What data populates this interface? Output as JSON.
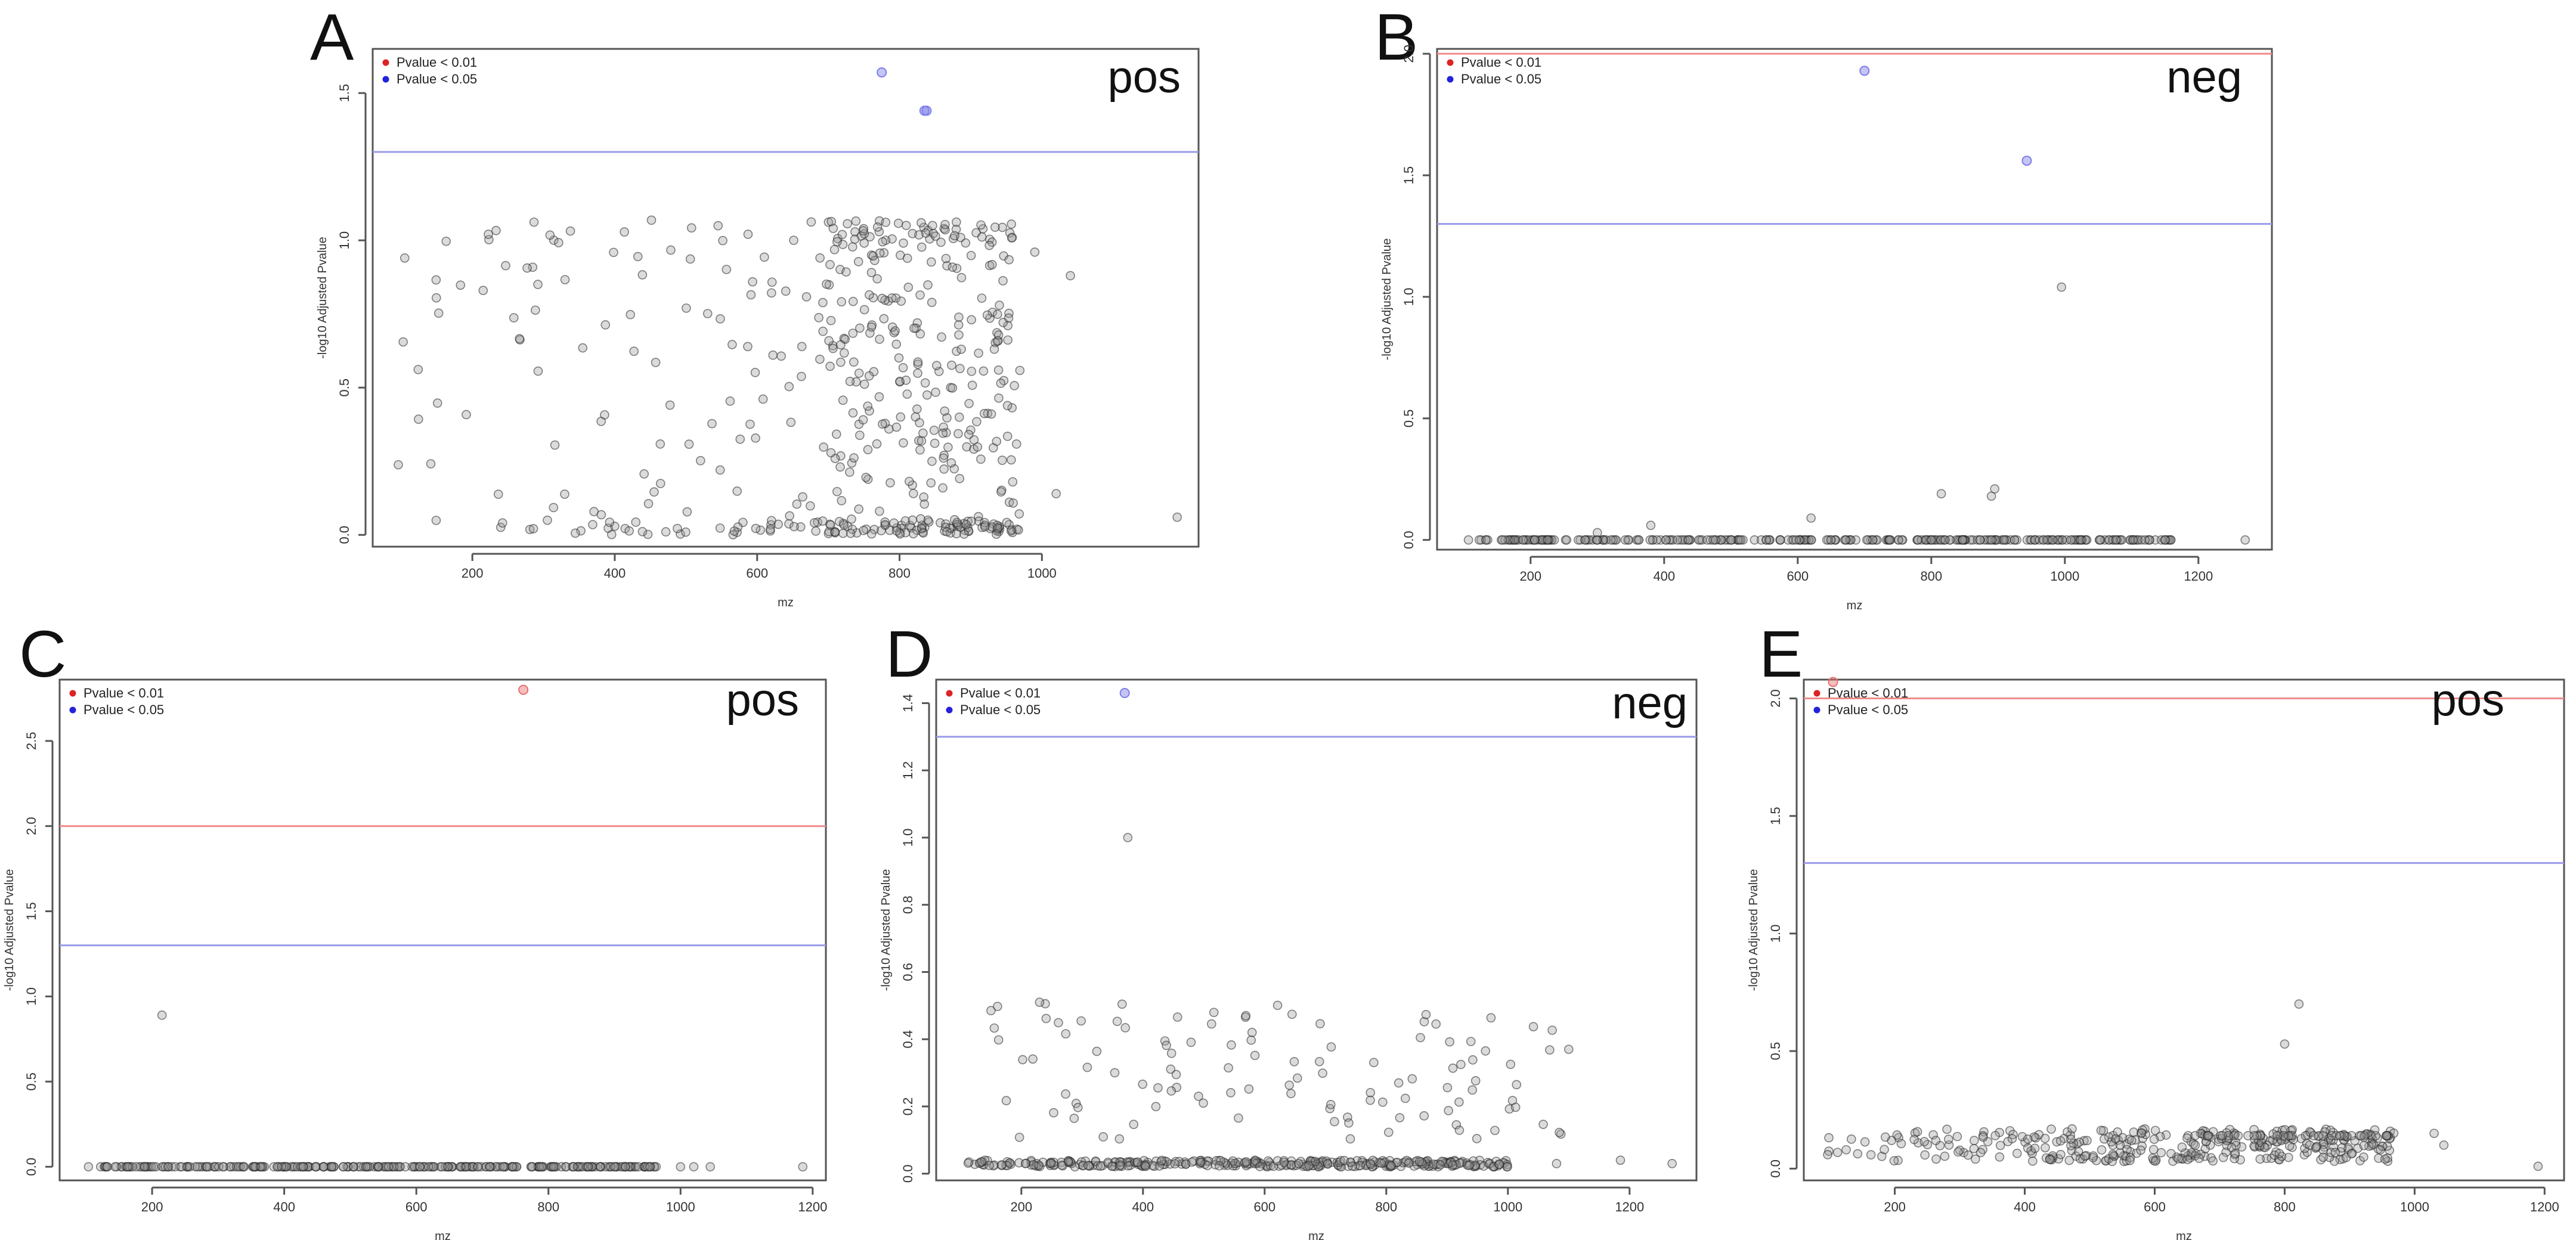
{
  "colors": {
    "red_line": "#f08a8a",
    "blue_line": "#9a9ae8",
    "legend_red": "#dd2222",
    "legend_blue": "#2222dd",
    "point_stroke": "#222222",
    "point_fill": "#999999",
    "sig_red": "#e87070",
    "sig_blue": "#7e7ee8"
  },
  "chart_data": [
    {
      "panel": "A",
      "mode": "pos",
      "type": "scatter",
      "xlabel": "mz",
      "ylabel": "-log10 Adjusted Pvalue",
      "xlim": [
        60,
        1220
      ],
      "ylim": [
        -0.04,
        1.65
      ],
      "xticks": [
        200,
        400,
        600,
        800,
        1000
      ],
      "yticks": [
        0.0,
        0.5,
        1.0,
        1.5
      ],
      "thresholds": {
        "blue": 1.3
      },
      "legend": [
        "Pvalue < 0.01",
        "Pvalue < 0.05"
      ],
      "significant": [
        {
          "mz": 775,
          "y": 1.57,
          "level": "blue"
        },
        {
          "mz": 835,
          "y": 1.44,
          "level": "blue"
        },
        {
          "mz": 838,
          "y": 1.44,
          "level": "blue"
        }
      ],
      "background": {
        "pattern": "scatter",
        "n": 520,
        "xmin": 95,
        "xmax": 970,
        "yhigh": 1.07,
        "dense_from": 700,
        "dense_to": 960,
        "seed": 11,
        "extra": [
          [
            105,
            0.94
          ],
          [
            1190,
            0.06
          ],
          [
            1020,
            0.14
          ],
          [
            1040,
            0.88
          ],
          [
            990,
            0.96
          ]
        ]
      }
    },
    {
      "panel": "B",
      "mode": "neg",
      "type": "scatter",
      "xlabel": "mz",
      "ylabel": "-log10 Adjusted Pvalue",
      "xlim": [
        60,
        1310
      ],
      "ylim": [
        -0.04,
        2.02
      ],
      "xticks": [
        200,
        400,
        600,
        800,
        1000,
        1200
      ],
      "yticks": [
        0.0,
        0.5,
        1.0,
        1.5,
        2.0
      ],
      "thresholds": {
        "red": 2.0,
        "blue": 1.3
      },
      "legend": [
        "Pvalue < 0.01",
        "Pvalue < 0.05"
      ],
      "significant": [
        {
          "mz": 700,
          "y": 1.93,
          "level": "blue"
        },
        {
          "mz": 943,
          "y": 1.56,
          "level": "blue"
        }
      ],
      "background": {
        "pattern": "baseline",
        "n": 300,
        "xmin": 105,
        "xmax": 1160,
        "seed": 23,
        "extra": [
          [
            995,
            1.04
          ],
          [
            815,
            0.19
          ],
          [
            895,
            0.21
          ],
          [
            890,
            0.18
          ],
          [
            620,
            0.09
          ],
          [
            380,
            0.06
          ],
          [
            300,
            0.03
          ],
          [
            1270,
            0.0
          ],
          [
            1120,
            0.0
          ],
          [
            1150,
            0.0
          ]
        ]
      }
    },
    {
      "panel": "C",
      "mode": "pos",
      "type": "scatter",
      "xlabel": "mz",
      "ylabel": "-log10 Adjusted Pvalue",
      "xlim": [
        60,
        1220
      ],
      "ylim": [
        -0.08,
        2.86
      ],
      "xticks": [
        200,
        400,
        600,
        800,
        1000,
        1200
      ],
      "yticks": [
        0.0,
        0.5,
        1.0,
        1.5,
        2.0,
        2.5
      ],
      "thresholds": {
        "red": 2.0,
        "blue": 1.3
      },
      "legend": [
        "Pvalue < 0.01",
        "Pvalue < 0.05"
      ],
      "significant": [
        {
          "mz": 762,
          "y": 2.8,
          "level": "red"
        }
      ],
      "background": {
        "pattern": "baseline",
        "n": 300,
        "xmin": 100,
        "xmax": 965,
        "seed": 37,
        "extra": [
          [
            215,
            0.89
          ],
          [
            1000,
            0.0
          ],
          [
            1020,
            0.0
          ],
          [
            1045,
            0.0
          ],
          [
            1185,
            0.0
          ]
        ]
      }
    },
    {
      "panel": "D",
      "mode": "neg",
      "type": "scatter",
      "xlabel": "mz",
      "ylabel": "-log10 Adjusted Pvalue",
      "xlim": [
        60,
        1310
      ],
      "ylim": [
        -0.02,
        1.47
      ],
      "xticks": [
        200,
        400,
        600,
        800,
        1000,
        1200
      ],
      "yticks": [
        0.0,
        0.2,
        0.4,
        0.6,
        0.8,
        1.0,
        1.2,
        1.4
      ],
      "thresholds": {
        "blue": 1.3
      },
      "legend": [
        "Pvalue < 0.01",
        "Pvalue < 0.05"
      ],
      "significant": [
        {
          "mz": 370,
          "y": 1.43,
          "level": "blue"
        }
      ],
      "background": {
        "pattern": "midscatter",
        "n": 330,
        "nhigh": 110,
        "xmin": 95,
        "xmax": 1000,
        "yhigh": 0.51,
        "ybase": 0.03,
        "seed": 53,
        "extra": [
          [
            375,
            1.0
          ],
          [
            230,
            0.51
          ],
          [
            1270,
            0.03
          ],
          [
            1185,
            0.04
          ],
          [
            1100,
            0.37
          ],
          [
            1080,
            0.03
          ]
        ]
      }
    },
    {
      "panel": "E",
      "mode": "pos",
      "type": "scatter",
      "xlabel": "mz",
      "ylabel": "-log10 Adjusted Pvalue",
      "xlim": [
        60,
        1230
      ],
      "ylim": [
        -0.05,
        2.08
      ],
      "xticks": [
        200,
        400,
        600,
        800,
        1000,
        1200
      ],
      "yticks": [
        0.0,
        0.5,
        1.0,
        1.5,
        2.0
      ],
      "thresholds": {
        "red": 2.0,
        "blue": 1.3
      },
      "legend": [
        "Pvalue < 0.01",
        "Pvalue < 0.05"
      ],
      "significant": [
        {
          "mz": 105,
          "y": 2.07,
          "level": "red"
        }
      ],
      "background": {
        "pattern": "band",
        "n": 330,
        "xmin": 95,
        "xmax": 970,
        "ybase": 0.1,
        "seed": 71,
        "extra": [
          [
            822,
            0.7
          ],
          [
            800,
            0.53
          ],
          [
            1190,
            0.01
          ],
          [
            1045,
            0.1
          ],
          [
            1030,
            0.15
          ]
        ]
      }
    }
  ]
}
